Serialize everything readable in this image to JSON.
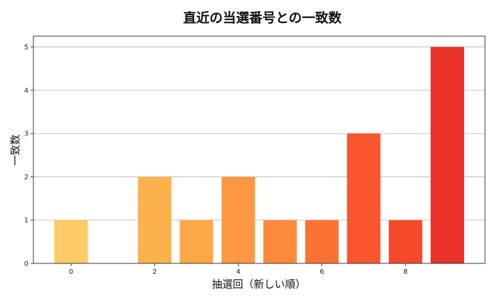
{
  "chart_data": {
    "type": "bar",
    "title": "直近の当選番号との一致数",
    "xlabel": "抽選回（新しい順）",
    "ylabel": "一致数",
    "x": [
      0,
      1,
      2,
      3,
      4,
      5,
      6,
      7,
      8,
      9
    ],
    "values": [
      1,
      0,
      2,
      1,
      2,
      1,
      1,
      3,
      1,
      5
    ],
    "xlim": [
      -0.9,
      9.9
    ],
    "ylim": [
      0,
      5.25
    ],
    "xticks": [
      "0",
      "2",
      "4",
      "6",
      "8"
    ],
    "xtick_values": [
      0,
      2,
      4,
      6,
      8
    ],
    "yticks": [
      "0",
      "1",
      "2",
      "3",
      "4",
      "5"
    ],
    "ytick_values": [
      0,
      1,
      2,
      3,
      4,
      5
    ],
    "grid": "horizontal",
    "colors": [
      "#fecb67",
      "#fed370",
      "#fdb14d",
      "#fda848",
      "#fd9742",
      "#fc8a3a",
      "#fc7234",
      "#f95630",
      "#f24a2b",
      "#e9322a"
    ]
  }
}
